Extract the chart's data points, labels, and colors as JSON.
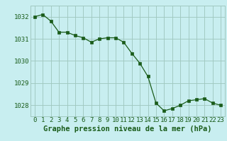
{
  "x": [
    0,
    1,
    2,
    3,
    4,
    5,
    6,
    7,
    8,
    9,
    10,
    11,
    12,
    13,
    14,
    15,
    16,
    17,
    18,
    19,
    20,
    21,
    22,
    23
  ],
  "y": [
    1032.0,
    1032.1,
    1031.8,
    1031.3,
    1031.3,
    1031.15,
    1031.05,
    1030.85,
    1031.0,
    1031.05,
    1031.05,
    1030.85,
    1030.35,
    1029.9,
    1029.3,
    1028.1,
    1027.75,
    1027.85,
    1028.0,
    1028.2,
    1028.25,
    1028.3,
    1028.1,
    1028.0
  ],
  "line_color": "#1a5c1a",
  "marker_color": "#1a5c1a",
  "bg_color": "#c8eef0",
  "grid_color": "#a0c8c0",
  "title": "Graphe pression niveau de la mer (hPa)",
  "ylim_min": 1027.5,
  "ylim_max": 1032.5,
  "yticks": [
    1028,
    1029,
    1030,
    1031,
    1032
  ],
  "xticks": [
    0,
    1,
    2,
    3,
    4,
    5,
    6,
    7,
    8,
    9,
    10,
    11,
    12,
    13,
    14,
    15,
    16,
    17,
    18,
    19,
    20,
    21,
    22,
    23
  ],
  "tick_fontsize": 6.5,
  "title_fontsize": 7.5,
  "title_fontweight": "bold"
}
